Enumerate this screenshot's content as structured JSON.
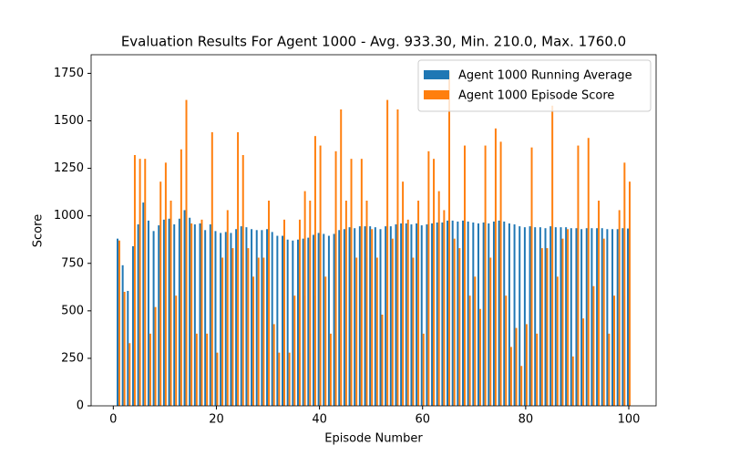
{
  "chart_data": {
    "type": "bar",
    "title": "Evaluation Results For Agent 1000 - Avg. 933.30, Min. 210.0, Max. 1760.0",
    "x_label": "Episode Number",
    "y_label": "Score",
    "x": [
      1,
      2,
      3,
      4,
      5,
      6,
      7,
      8,
      9,
      10,
      11,
      12,
      13,
      14,
      15,
      16,
      17,
      18,
      19,
      20,
      21,
      22,
      23,
      24,
      25,
      26,
      27,
      28,
      29,
      30,
      31,
      32,
      33,
      34,
      35,
      36,
      37,
      38,
      39,
      40,
      41,
      42,
      43,
      44,
      45,
      46,
      47,
      48,
      49,
      50,
      51,
      52,
      53,
      54,
      55,
      56,
      57,
      58,
      59,
      60,
      61,
      62,
      63,
      64,
      65,
      66,
      67,
      68,
      69,
      70,
      71,
      72,
      73,
      74,
      75,
      76,
      77,
      78,
      79,
      80,
      81,
      82,
      83,
      84,
      85,
      86,
      87,
      88,
      89,
      90,
      91,
      92,
      93,
      94,
      95,
      96,
      97,
      98,
      99,
      100
    ],
    "series": [
      {
        "name": "Agent 1000 Running Average",
        "color": "#1f77b4",
        "values": [
          880,
          740,
          605,
          840,
          955,
          1070,
          975,
          920,
          950,
          980,
          985,
          955,
          985,
          1030,
          990,
          955,
          960,
          925,
          955,
          920,
          910,
          915,
          910,
          930,
          945,
          940,
          930,
          925,
          925,
          930,
          915,
          895,
          895,
          875,
          870,
          875,
          880,
          885,
          900,
          910,
          905,
          895,
          905,
          925,
          930,
          940,
          935,
          945,
          945,
          945,
          940,
          930,
          945,
          945,
          955,
          960,
          960,
          955,
          960,
          950,
          955,
          960,
          965,
          965,
          975,
          975,
          970,
          975,
          970,
          965,
          960,
          965,
          960,
          970,
          975,
          970,
          960,
          955,
          945,
          940,
          945,
          940,
          940,
          935,
          945,
          940,
          940,
          940,
          935,
          935,
          930,
          935,
          935,
          935,
          935,
          930,
          930,
          930,
          935,
          933.3
        ]
      },
      {
        "name": "Agent 1000 Episode Score",
        "color": "#ff7f0e",
        "values": [
          870,
          600,
          330,
          1320,
          1300,
          1300,
          380,
          520,
          1180,
          1280,
          1080,
          580,
          1350,
          1610,
          960,
          380,
          980,
          380,
          1440,
          280,
          780,
          1030,
          830,
          1440,
          1320,
          830,
          680,
          780,
          780,
          1080,
          430,
          280,
          980,
          280,
          580,
          980,
          1130,
          1080,
          1420,
          1370,
          680,
          380,
          1340,
          1560,
          1080,
          1300,
          780,
          1300,
          1080,
          930,
          780,
          480,
          1610,
          880,
          1560,
          1180,
          980,
          780,
          1080,
          380,
          1340,
          1300,
          1130,
          1030,
          1760,
          880,
          830,
          1370,
          580,
          680,
          510,
          1370,
          780,
          1460,
          1390,
          580,
          310,
          410,
          210,
          430,
          1360,
          380,
          830,
          830,
          1580,
          680,
          880,
          930,
          260,
          1370,
          460,
          1410,
          630,
          1080,
          880,
          380,
          580,
          1030,
          1280,
          1180
        ]
      }
    ],
    "xlim": [
      -4.3,
      105.3
    ],
    "ylim": [
      0,
      1848
    ],
    "xticks": [
      0,
      20,
      40,
      60,
      80,
      100
    ],
    "yticks": [
      0,
      250,
      500,
      750,
      1000,
      1250,
      1500,
      1750
    ],
    "legend": "upper right"
  }
}
